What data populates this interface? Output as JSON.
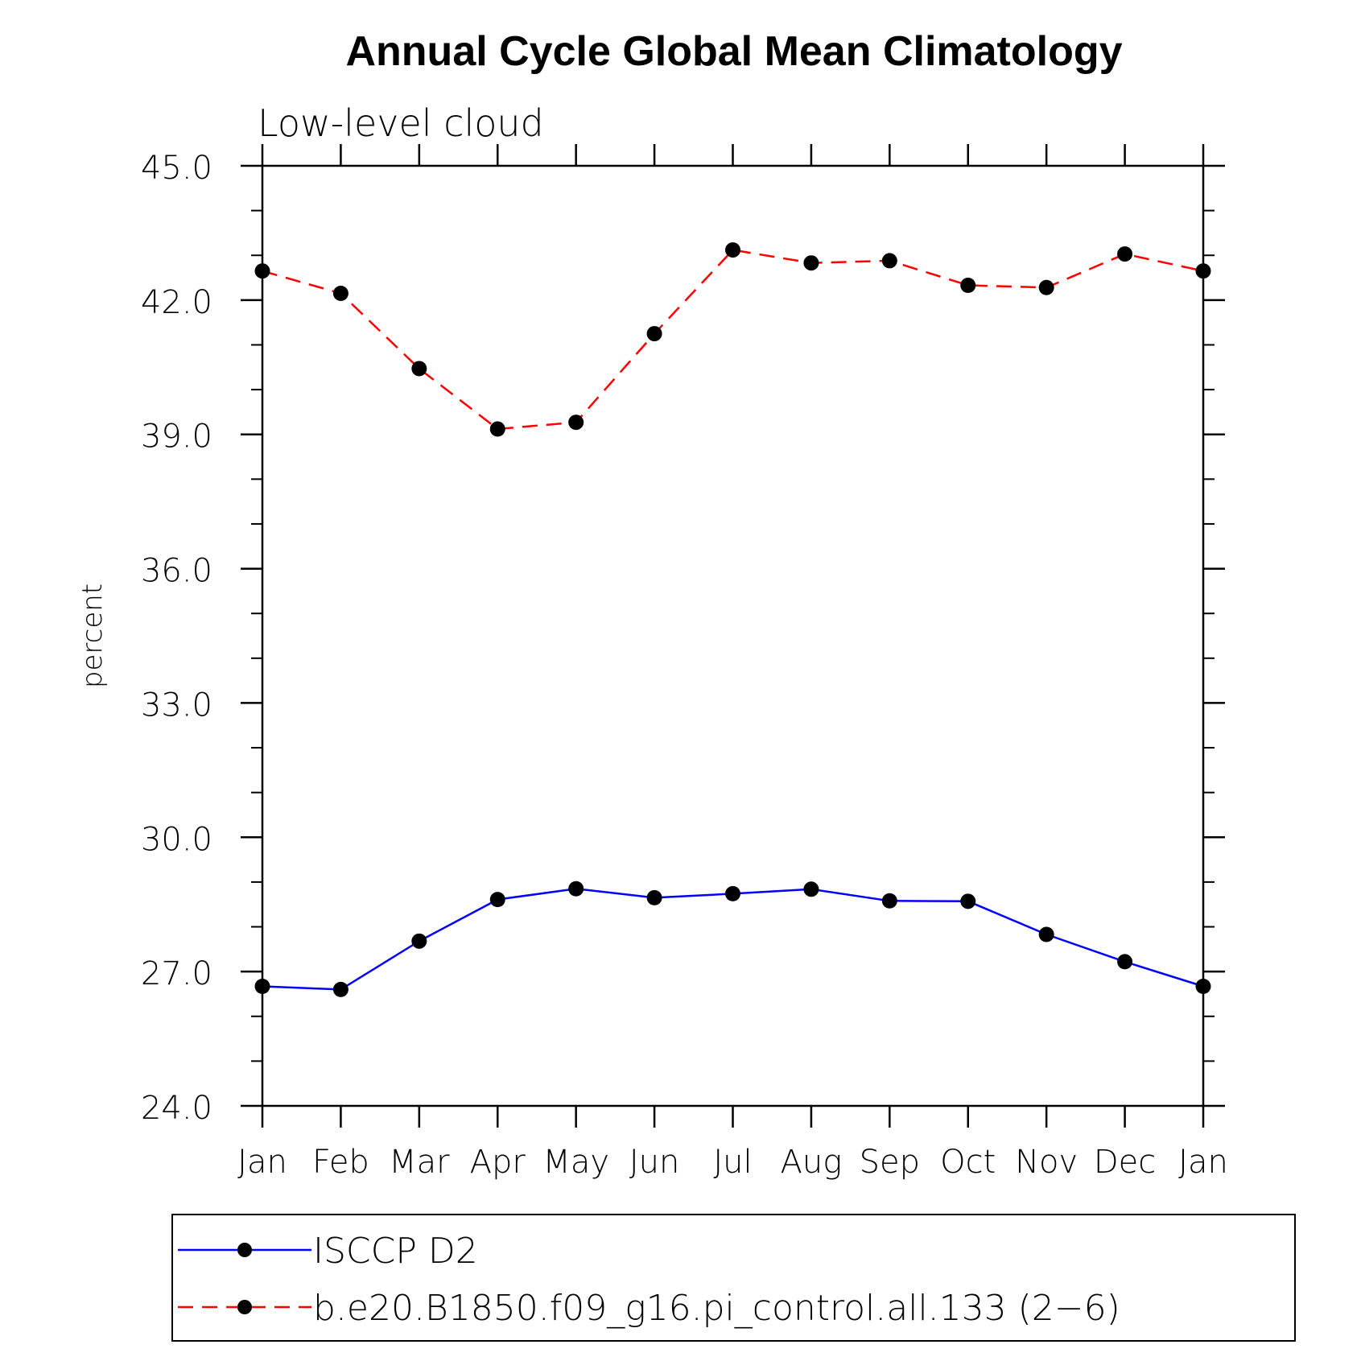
{
  "chart_data": {
    "type": "line",
    "title": "Annual Cycle Global Mean Climatology",
    "subtitle": "Low-level cloud",
    "xlabel": "",
    "ylabel": "percent",
    "categories": [
      "Jan",
      "Feb",
      "Mar",
      "Apr",
      "May",
      "Jun",
      "Jul",
      "Aug",
      "Sep",
      "Oct",
      "Nov",
      "Dec",
      "Jan"
    ],
    "ylim": [
      24.0,
      45.0
    ],
    "yticks": [
      "24.0",
      "27.0",
      "30.0",
      "33.0",
      "36.0",
      "39.0",
      "42.0",
      "45.0"
    ],
    "ytick_values": [
      24.0,
      27.0,
      30.0,
      33.0,
      36.0,
      39.0,
      42.0,
      45.0
    ],
    "grid": false,
    "legend_position": "bottom",
    "series": [
      {
        "name": "ISCCP D2",
        "color": "#0000ff",
        "line_style": "solid",
        "marker": "filled-circle",
        "values": [
          26.67,
          26.6,
          27.68,
          28.61,
          28.85,
          28.65,
          28.74,
          28.84,
          28.58,
          28.57,
          27.83,
          27.22,
          26.67
        ]
      },
      {
        "name": "b.e20.B1850.f09_g16.pi_control.all.133 (2−6)",
        "color": "#ff0000",
        "line_style": "dashed",
        "marker": "filled-circle",
        "values": [
          42.65,
          42.15,
          40.47,
          39.12,
          39.27,
          41.25,
          43.12,
          42.83,
          42.88,
          42.33,
          42.28,
          43.03,
          42.65
        ]
      }
    ]
  }
}
